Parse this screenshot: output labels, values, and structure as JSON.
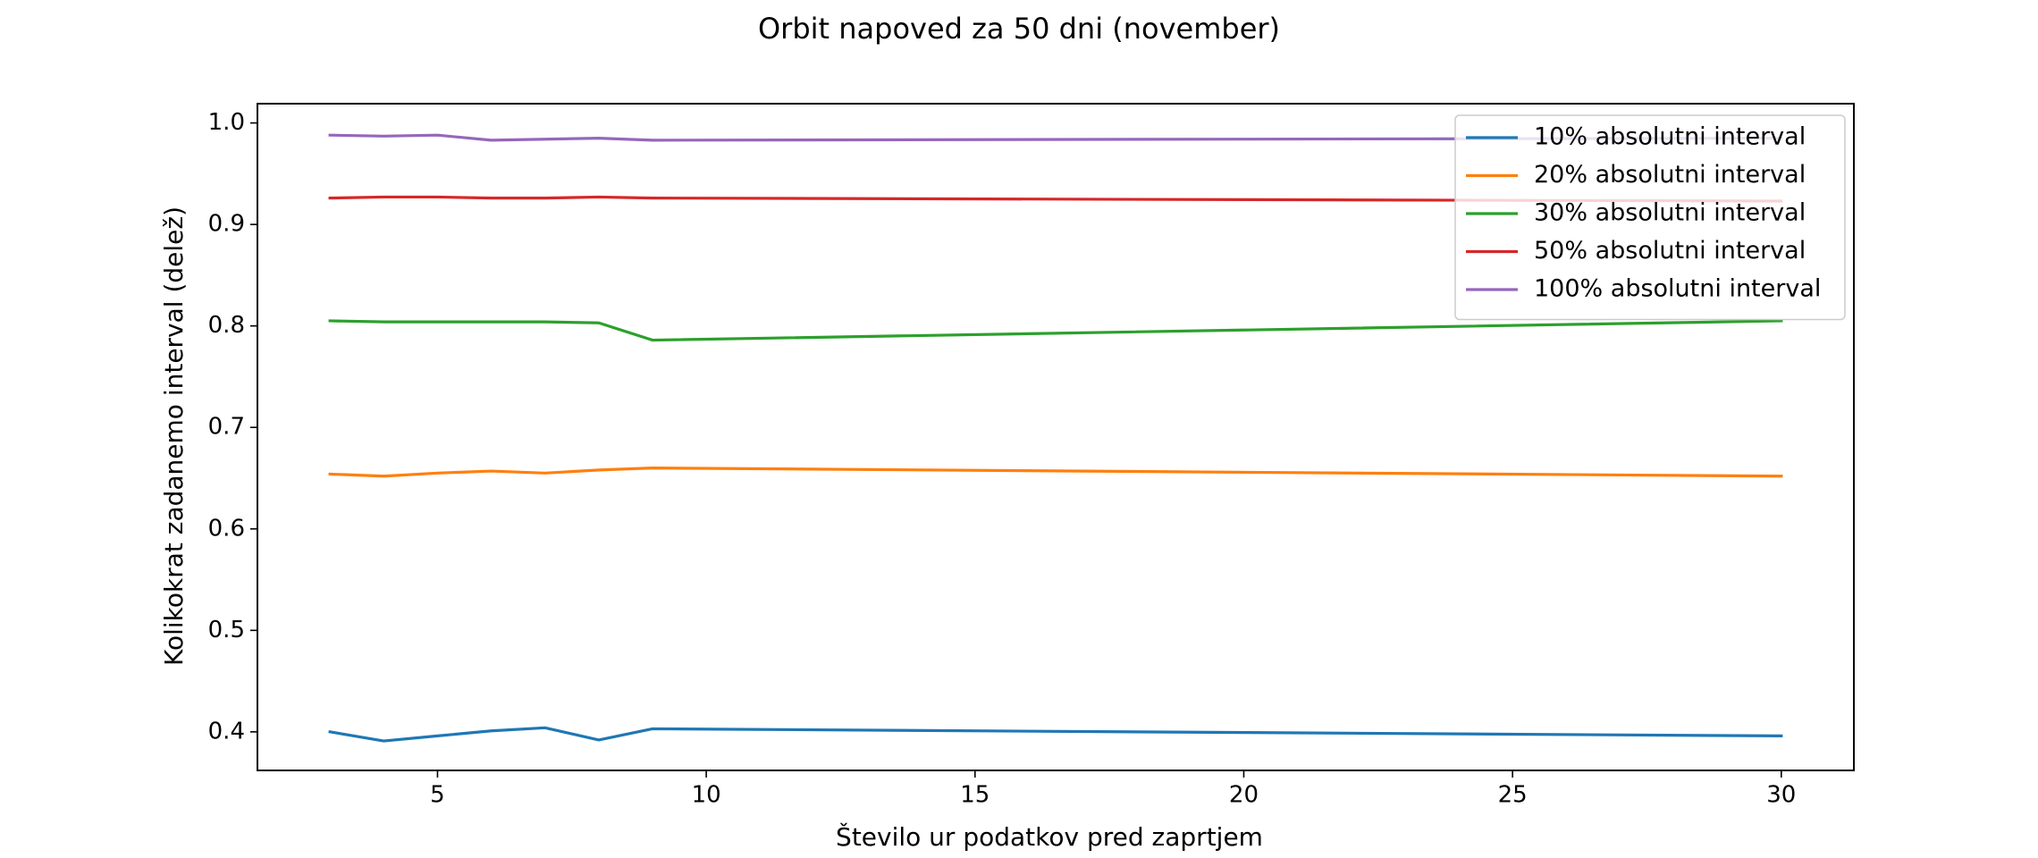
{
  "chart_data": {
    "type": "line",
    "title": "Orbit napoved za 50 dni (november)",
    "xlabel": "Število ur podatkov pred zaprtjem",
    "ylabel": "Kolikokrat zadanemo interval (delež)",
    "xlim": [
      1.65,
      31.35
    ],
    "ylim": [
      0.362,
      1.019
    ],
    "xticks": [
      5,
      10,
      15,
      20,
      25,
      30
    ],
    "yticks": [
      0.4,
      0.5,
      0.6,
      0.7,
      0.8,
      0.9,
      1.0
    ],
    "xtick_labels": [
      "5",
      "10",
      "15",
      "20",
      "25",
      "30"
    ],
    "ytick_labels": [
      "0.4",
      "0.5",
      "0.6",
      "0.7",
      "0.8",
      "0.9",
      "1.0"
    ],
    "grid": false,
    "legend_position": "top-right",
    "x": [
      3,
      4,
      5,
      6,
      7,
      8,
      9,
      30
    ],
    "series": [
      {
        "name": "10% absolutni interval",
        "color": "#1f77b4",
        "values": [
          0.4,
          0.391,
          0.396,
          0.401,
          0.404,
          0.392,
          0.403,
          0.396
        ]
      },
      {
        "name": "20% absolutni interval",
        "color": "#ff7f0e",
        "values": [
          0.654,
          0.652,
          0.655,
          0.657,
          0.655,
          0.658,
          0.66,
          0.652
        ]
      },
      {
        "name": "30% absolutni interval",
        "color": "#2ca02c",
        "values": [
          0.805,
          0.804,
          0.804,
          0.804,
          0.804,
          0.803,
          0.786,
          0.805
        ]
      },
      {
        "name": "50% absolutni interval",
        "color": "#d62728",
        "values": [
          0.926,
          0.927,
          0.927,
          0.926,
          0.926,
          0.927,
          0.926,
          0.923
        ]
      },
      {
        "name": "100% absolutni interval",
        "color": "#9467bd",
        "values": [
          0.988,
          0.987,
          0.988,
          0.983,
          0.984,
          0.985,
          0.983,
          0.985
        ]
      }
    ]
  }
}
